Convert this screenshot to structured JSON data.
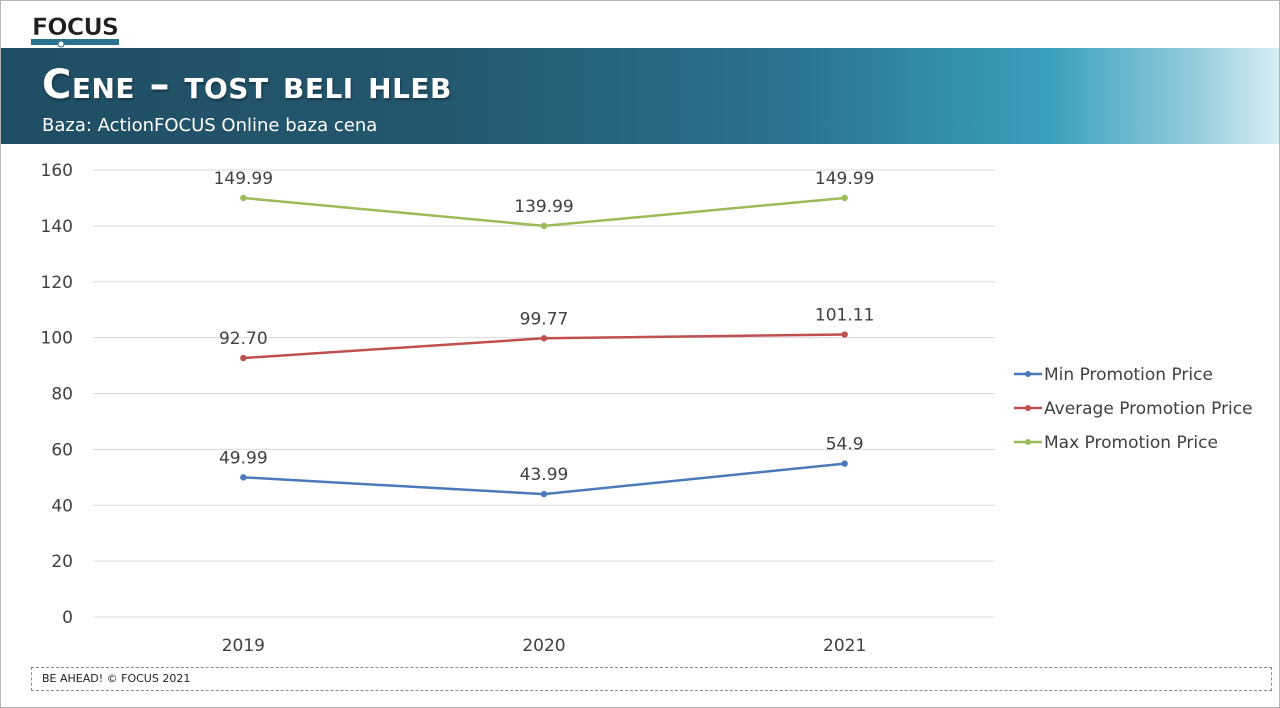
{
  "header": {
    "logo_text": "FOCUS",
    "title": "Cene – tost beli hleb",
    "subtitle": "Baza: ActionFOCUS Online baza cena"
  },
  "footer": {
    "text": "BE AHEAD! © FOCUS 2021"
  },
  "colors": {
    "min": "#4a7ab9",
    "avg": "#c0504d",
    "max": "#9bbb59",
    "grid": "#d9d9d9",
    "axis_text": "#404040"
  },
  "chart_data": {
    "type": "line",
    "title": "",
    "xlabel": "",
    "ylabel": "",
    "categories": [
      "2019",
      "2020",
      "2021"
    ],
    "ylim": [
      0,
      160
    ],
    "yticks": [
      0,
      20,
      40,
      60,
      80,
      100,
      120,
      140,
      160
    ],
    "grid": true,
    "legend_position": "right",
    "series": [
      {
        "name": "Min Promotion Price",
        "values": [
          49.99,
          43.99,
          54.9
        ],
        "labels": [
          "49.99",
          "43.99",
          "54.9"
        ],
        "color": "#4a7ab9"
      },
      {
        "name": "Average Promotion Price",
        "values": [
          92.7,
          99.77,
          101.11
        ],
        "labels": [
          "92.70",
          "99.77",
          "101.11"
        ],
        "color": "#c0504d"
      },
      {
        "name": "Max Promotion Price",
        "values": [
          149.99,
          139.99,
          149.99
        ],
        "labels": [
          "149.99",
          "139.99",
          "149.99"
        ],
        "color": "#9bbb59"
      }
    ]
  }
}
